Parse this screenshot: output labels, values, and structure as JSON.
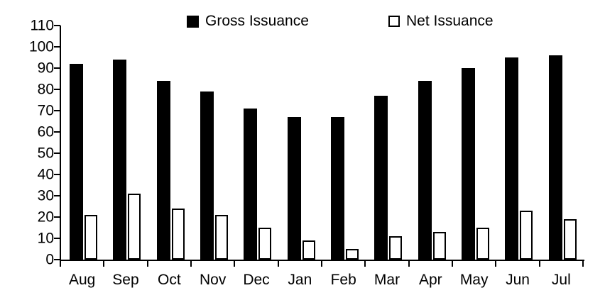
{
  "chart_data": {
    "type": "bar",
    "title": "",
    "categories": [
      "Aug",
      "Sep",
      "Oct",
      "Nov",
      "Dec",
      "Jan",
      "Feb",
      "Mar",
      "Apr",
      "May",
      "Jun",
      "Jul"
    ],
    "series": [
      {
        "name": "Gross Issuance",
        "marker": "filled-black-square",
        "fill": "#000000",
        "border": "#000000",
        "values": [
          92,
          94,
          84,
          79,
          71,
          67,
          67,
          77,
          84,
          90,
          95,
          96
        ]
      },
      {
        "name": "Net Issuance",
        "marker": "hollow-white-square",
        "fill": "#ffffff",
        "border": "#000000",
        "values": [
          21,
          31,
          24,
          21,
          15,
          9,
          5,
          11,
          13,
          15,
          23,
          19
        ]
      }
    ],
    "xlabel": "",
    "ylabel": "",
    "ylim": [
      0,
      110
    ],
    "ytick_step": 10,
    "ytick_labels": [
      "0",
      "10",
      "20",
      "30",
      "40",
      "50",
      "60",
      "70",
      "80",
      "90",
      "100",
      "110"
    ],
    "grid": false,
    "legend_position": "top-center",
    "axis_color": "#000000",
    "background_color": "#ffffff"
  }
}
